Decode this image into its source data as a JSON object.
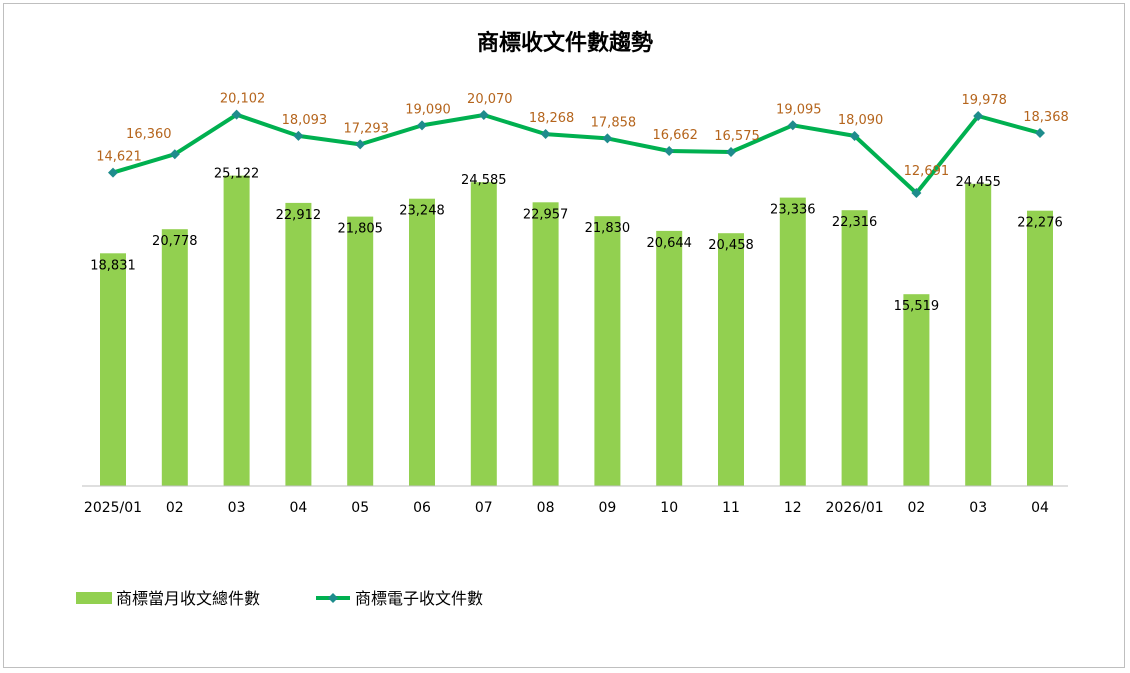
{
  "chart_data": {
    "type": "bar",
    "title": "商標收文件數趨勢",
    "categories": [
      "2025/01",
      "02",
      "03",
      "04",
      "05",
      "06",
      "07",
      "08",
      "09",
      "10",
      "11",
      "12",
      "2026/01",
      "02",
      "03",
      "04"
    ],
    "series": [
      {
        "name": "商標當月收文總件數",
        "type": "bar",
        "color": "#92d050",
        "values": [
          18831,
          20778,
          25122,
          22912,
          21805,
          23248,
          24585,
          22957,
          21830,
          20644,
          20458,
          23336,
          22316,
          15519,
          24455,
          22276
        ]
      },
      {
        "name": "商標電子收文件數",
        "type": "line",
        "color": "#00b050",
        "marker_color": "#1e8c8c",
        "label_color": "#b5651d",
        "values": [
          14621,
          16360,
          20102,
          18093,
          17293,
          19090,
          20070,
          18268,
          17858,
          16662,
          16575,
          19095,
          18090,
          12691,
          19978,
          18368
        ]
      }
    ],
    "bar_axis_range": [
      0,
      28000
    ],
    "line_axis_range": [
      -15000,
      23000
    ],
    "grid": false,
    "legend_position": "bottom-left"
  }
}
